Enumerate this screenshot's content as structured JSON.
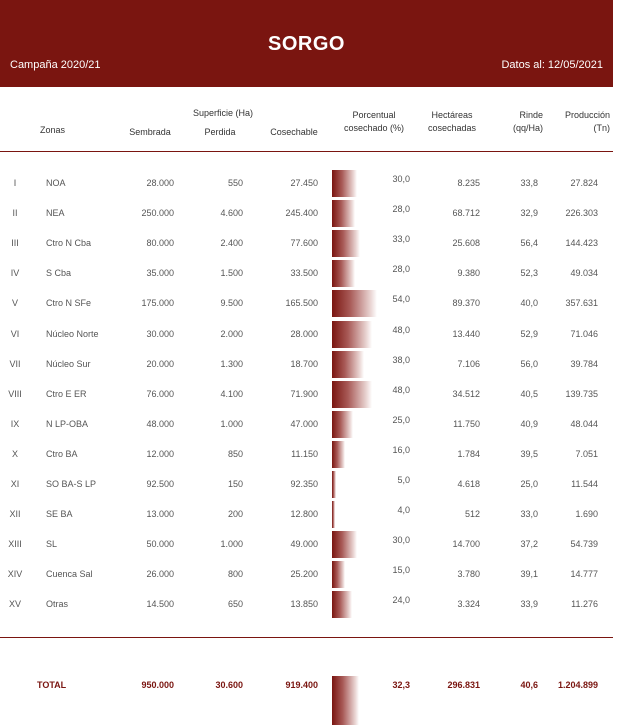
{
  "header": {
    "title": "SORGO",
    "campaign": "Campaña 2020/21",
    "date": "Datos al: 12/05/2021"
  },
  "columns": {
    "zonas": "Zonas",
    "superficie": "Superficie (Ha)",
    "sembrada": "Sembrada",
    "perdida": "Perdida",
    "cosechable": "Cosechable",
    "porcentual_1": "Porcentual",
    "porcentual_2": "cosechado (%)",
    "hectareas_1": "Hectáreas",
    "hectareas_2": "cosechadas",
    "rinde_1": "Rinde",
    "rinde_2": "(qq/Ha)",
    "produccion_1": "Producción",
    "produccion_2": "(Tn)"
  },
  "rows": [
    {
      "roman": "I",
      "zona": "NOA",
      "sembrada": "28.000",
      "perdida": "550",
      "cosechable": "27.450",
      "pct": "30,0",
      "pct_value": 30,
      "hectareas": "8.235",
      "rinde": "33,8",
      "produccion": "27.824"
    },
    {
      "roman": "II",
      "zona": "NEA",
      "sembrada": "250.000",
      "perdida": "4.600",
      "cosechable": "245.400",
      "pct": "28,0",
      "pct_value": 28,
      "hectareas": "68.712",
      "rinde": "32,9",
      "produccion": "226.303"
    },
    {
      "roman": "III",
      "zona": "Ctro N Cba",
      "sembrada": "80.000",
      "perdida": "2.400",
      "cosechable": "77.600",
      "pct": "33,0",
      "pct_value": 33,
      "hectareas": "25.608",
      "rinde": "56,4",
      "produccion": "144.423"
    },
    {
      "roman": "IV",
      "zona": "S Cba",
      "sembrada": "35.000",
      "perdida": "1.500",
      "cosechable": "33.500",
      "pct": "28,0",
      "pct_value": 28,
      "hectareas": "9.380",
      "rinde": "52,3",
      "produccion": "49.034"
    },
    {
      "roman": "V",
      "zona": "Ctro N SFe",
      "sembrada": "175.000",
      "perdida": "9.500",
      "cosechable": "165.500",
      "pct": "54,0",
      "pct_value": 54,
      "hectareas": "89.370",
      "rinde": "40,0",
      "produccion": "357.631"
    },
    {
      "roman": "VI",
      "zona": "Núcleo Norte",
      "sembrada": "30.000",
      "perdida": "2.000",
      "cosechable": "28.000",
      "pct": "48,0",
      "pct_value": 48,
      "hectareas": "13.440",
      "rinde": "52,9",
      "produccion": "71.046"
    },
    {
      "roman": "VII",
      "zona": "Núcleo Sur",
      "sembrada": "20.000",
      "perdida": "1.300",
      "cosechable": "18.700",
      "pct": "38,0",
      "pct_value": 38,
      "hectareas": "7.106",
      "rinde": "56,0",
      "produccion": "39.784"
    },
    {
      "roman": "VIII",
      "zona": "Ctro E ER",
      "sembrada": "76.000",
      "perdida": "4.100",
      "cosechable": "71.900",
      "pct": "48,0",
      "pct_value": 48,
      "hectareas": "34.512",
      "rinde": "40,5",
      "produccion": "139.735"
    },
    {
      "roman": "IX",
      "zona": "N LP-OBA",
      "sembrada": "48.000",
      "perdida": "1.000",
      "cosechable": "47.000",
      "pct": "25,0",
      "pct_value": 25,
      "hectareas": "11.750",
      "rinde": "40,9",
      "produccion": "48.044"
    },
    {
      "roman": "X",
      "zona": "Ctro BA",
      "sembrada": "12.000",
      "perdida": "850",
      "cosechable": "11.150",
      "pct": "16,0",
      "pct_value": 16,
      "hectareas": "1.784",
      "rinde": "39,5",
      "produccion": "7.051"
    },
    {
      "roman": "XI",
      "zona": "SO BA-S LP",
      "sembrada": "92.500",
      "perdida": "150",
      "cosechable": "92.350",
      "pct": "5,0",
      "pct_value": 5,
      "hectareas": "4.618",
      "rinde": "25,0",
      "produccion": "11.544"
    },
    {
      "roman": "XII",
      "zona": "SE BA",
      "sembrada": "13.000",
      "perdida": "200",
      "cosechable": "12.800",
      "pct": "4,0",
      "pct_value": 4,
      "hectareas": "512",
      "rinde": "33,0",
      "produccion": "1.690"
    },
    {
      "roman": "XIII",
      "zona": "SL",
      "sembrada": "50.000",
      "perdida": "1.000",
      "cosechable": "49.000",
      "pct": "30,0",
      "pct_value": 30,
      "hectareas": "14.700",
      "rinde": "37,2",
      "produccion": "54.739"
    },
    {
      "roman": "XIV",
      "zona": "Cuenca Sal",
      "sembrada": "26.000",
      "perdida": "800",
      "cosechable": "25.200",
      "pct": "15,0",
      "pct_value": 15,
      "hectareas": "3.780",
      "rinde": "39,1",
      "produccion": "14.777"
    },
    {
      "roman": "XV",
      "zona": "Otras",
      "sembrada": "14.500",
      "perdida": "650",
      "cosechable": "13.850",
      "pct": "24,0",
      "pct_value": 24,
      "hectareas": "3.324",
      "rinde": "33,9",
      "produccion": "11.276"
    }
  ],
  "total": {
    "label": "TOTAL",
    "sembrada": "950.000",
    "perdida": "30.600",
    "cosechable": "919.400",
    "pct": "32,3",
    "pct_value": 32.3,
    "hectareas": "296.831",
    "rinde": "40,6",
    "produccion": "1.204.899"
  },
  "colors": {
    "accent": "#7a1510",
    "text": "#555555",
    "background": "#ffffff"
  }
}
